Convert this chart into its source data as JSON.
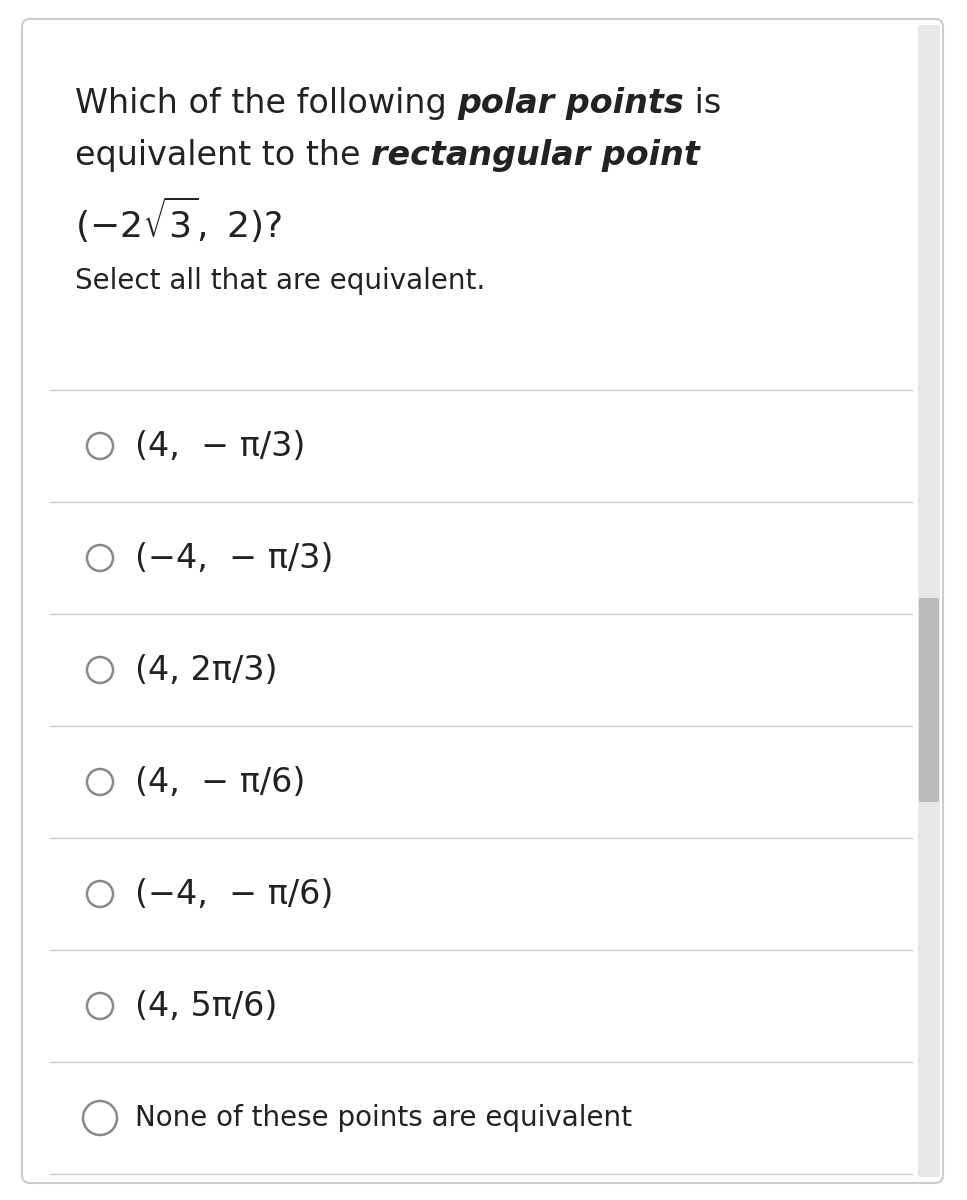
{
  "background_color": "#ffffff",
  "border_color": "#cccccc",
  "text_color": "#222222",
  "circle_color": "#888888",
  "line_color": "#cccccc",
  "question_font_size": 24,
  "subtext_font_size": 20,
  "option_font_size": 24,
  "options_math": [
    "(4, − π/3)",
    "(−4, − π/3)",
    "(4, 2π/3)",
    "(4, − π/6)",
    "(−4, − π/6)",
    "(4, 5π/6)"
  ],
  "options_math_raw": [
    "$(4, - \\pi/3)$",
    "$(-4, - \\pi/3)$",
    "$(4, 2\\pi/3)$",
    "$(4, - \\pi/6)$",
    "$(-4, - \\pi/6)$",
    "$(4, 5\\pi/6)$"
  ],
  "last_option": "None of these points are equivalent"
}
